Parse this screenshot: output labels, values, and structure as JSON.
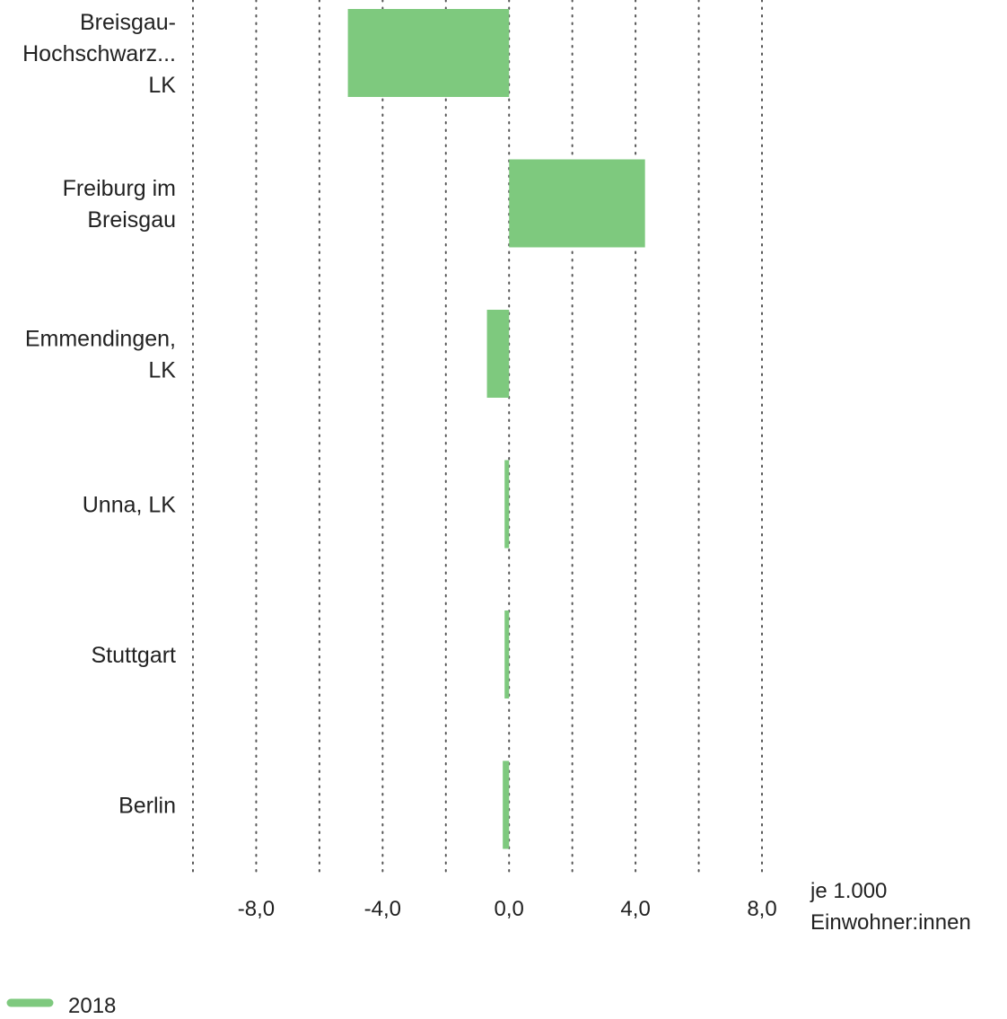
{
  "chart_data": {
    "type": "bar",
    "orientation": "horizontal",
    "categories": [
      [
        "Breisgau-",
        "Hochschwarz...",
        "LK"
      ],
      [
        "Freiburg im",
        "Breisgau"
      ],
      [
        "Emmendingen,",
        "LK"
      ],
      [
        "Unna, LK"
      ],
      [
        "Stuttgart"
      ],
      [
        "Berlin"
      ]
    ],
    "series": [
      {
        "name": "2018",
        "color": "#7ec97e",
        "values": [
          -5.1,
          4.3,
          -0.7,
          -0.1,
          -0.1,
          -0.2
        ]
      }
    ],
    "xlim": [
      -10,
      8
    ],
    "xticks": [
      {
        "value": -8,
        "label": "-8,0"
      },
      {
        "value": -4,
        "label": "-4,0"
      },
      {
        "value": 0,
        "label": "0,0"
      },
      {
        "value": 4,
        "label": "4,0"
      },
      {
        "value": 8,
        "label": "8,0"
      }
    ],
    "gridlines": [
      -10,
      -8,
      -6,
      -4,
      -2,
      0,
      2,
      4,
      6,
      8
    ],
    "grid": "vertical dotted",
    "xlabel": [
      "je 1.000",
      "Einwohner:innen"
    ],
    "legend_position": "bottom-left"
  }
}
